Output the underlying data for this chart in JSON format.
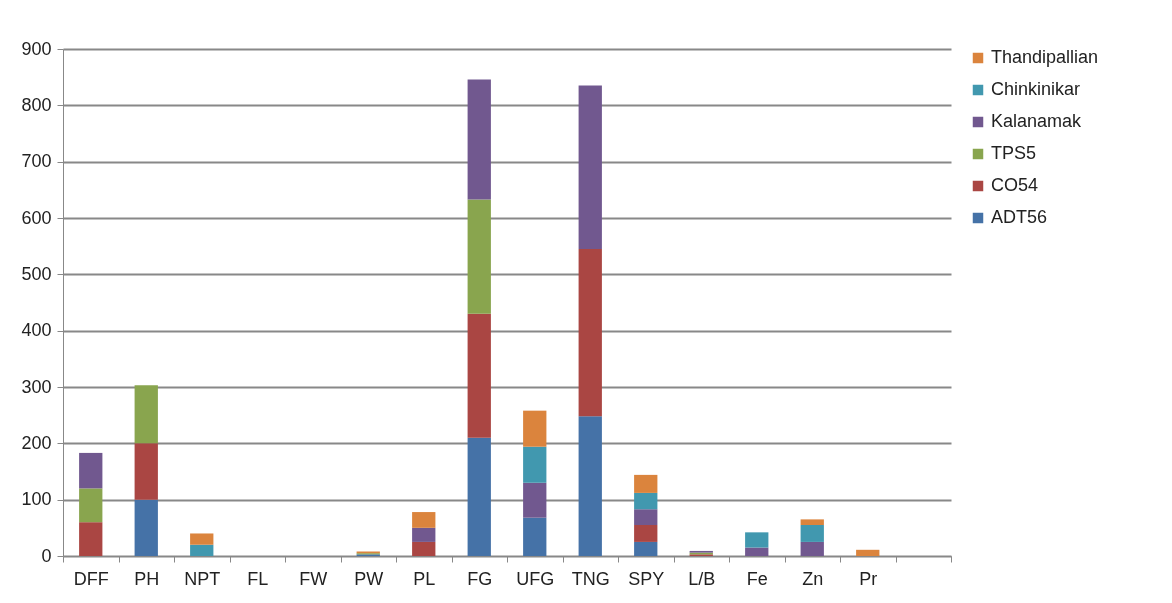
{
  "chart_data": {
    "type": "bar",
    "stacked": true,
    "categories": [
      "DFF",
      "PH",
      "NPT",
      "FL",
      "FW",
      "PW",
      "PL",
      "FG",
      "UFG",
      "TNG",
      "SPY",
      "L/B",
      "Fe",
      "Zn",
      "Pr",
      null
    ],
    "series": [
      {
        "name": "ADT56",
        "color": "#4572a7",
        "values": [
          null,
          100,
          null,
          null,
          null,
          3,
          null,
          210,
          68,
          248,
          25,
          null,
          null,
          null,
          null,
          null
        ]
      },
      {
        "name": "CO54",
        "color": "#aa4643",
        "values": [
          60,
          100,
          null,
          null,
          null,
          null,
          25,
          220,
          null,
          297,
          30,
          3,
          null,
          null,
          null,
          null
        ]
      },
      {
        "name": "TPS5",
        "color": "#89a54e",
        "values": [
          60,
          103,
          null,
          null,
          null,
          2,
          null,
          203,
          null,
          null,
          null,
          3,
          null,
          null,
          null,
          null
        ]
      },
      {
        "name": "Kalanamak",
        "color": "#71588f",
        "values": [
          63,
          null,
          null,
          null,
          null,
          null,
          25,
          213,
          62,
          290,
          28,
          3,
          15,
          25,
          null,
          null
        ]
      },
      {
        "name": "Chinkinikar",
        "color": "#4198af",
        "values": [
          null,
          null,
          20,
          null,
          null,
          null,
          null,
          null,
          64,
          null,
          29,
          null,
          27,
          30,
          null,
          null
        ]
      },
      {
        "name": "Thandipallian",
        "color": "#db843d",
        "values": [
          null,
          null,
          20,
          null,
          null,
          3,
          28,
          null,
          64,
          null,
          32,
          null,
          null,
          10,
          11,
          null
        ]
      }
    ],
    "ylim": [
      0,
      900
    ],
    "yticks": [
      0,
      100,
      200,
      300,
      400,
      500,
      600,
      700,
      800,
      900
    ],
    "grid": "y",
    "legend": "right"
  }
}
